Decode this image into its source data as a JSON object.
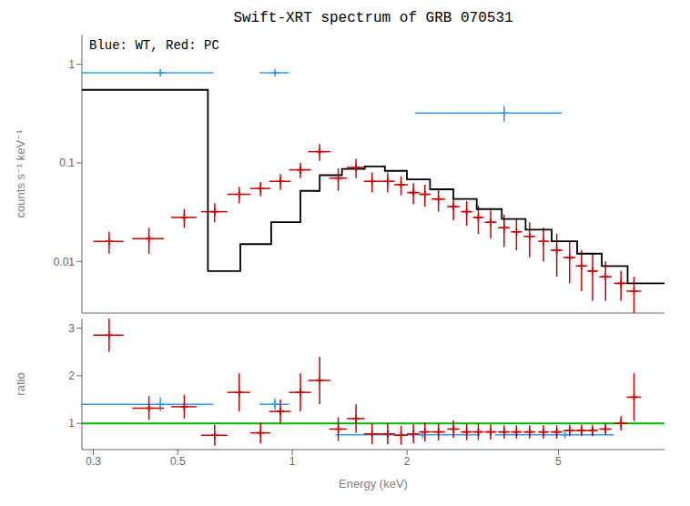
{
  "chart_data": [
    {
      "type": "scatter",
      "title": "Swift-XRT spectrum of GRB 070531",
      "subtitle": "Blue: WT, Red: PC",
      "y_label": "counts s⁻¹ keV⁻¹",
      "log": true,
      "grid": false,
      "tick_labels": "y",
      "xlim": [
        0.28,
        9.5
      ],
      "ylim": [
        0.003,
        2.0
      ],
      "yticks": [
        0.01,
        0.1,
        1
      ],
      "series": [
        {
          "type": "line",
          "color": "#000000",
          "x": [
            0.28,
            0.6,
            0.6,
            0.73,
            0.73,
            0.88,
            0.88,
            1.05,
            1.05,
            1.18,
            1.18,
            1.35,
            1.35,
            1.55,
            1.55,
            1.75,
            1.75,
            2.0,
            2.0,
            2.3,
            2.3,
            2.65,
            2.65,
            3.05,
            3.05,
            3.55,
            3.55,
            4.1,
            4.1,
            4.8,
            4.8,
            5.6,
            5.6,
            6.5,
            6.5,
            7.6,
            7.6,
            9.5
          ],
          "values": [
            0.55,
            0.55,
            0.008,
            0.008,
            0.015,
            0.015,
            0.025,
            0.025,
            0.052,
            0.052,
            0.075,
            0.075,
            0.087,
            0.087,
            0.092,
            0.092,
            0.083,
            0.083,
            0.068,
            0.068,
            0.054,
            0.054,
            0.043,
            0.043,
            0.034,
            0.034,
            0.027,
            0.027,
            0.021,
            0.021,
            0.016,
            0.016,
            0.012,
            0.012,
            0.009,
            0.009,
            0.006,
            0.006
          ]
        },
        {
          "type": "scatter",
          "marker": "+",
          "color": "#cc0000",
          "x": [
            0.33,
            0.42,
            0.52,
            0.625,
            0.725,
            0.825,
            0.93,
            1.05,
            1.18,
            1.32,
            1.47,
            1.62,
            1.78,
            1.93,
            2.08,
            2.23,
            2.42,
            2.65,
            2.87,
            3.08,
            3.32,
            3.6,
            3.88,
            4.2,
            4.57,
            4.95,
            5.35,
            5.75,
            6.15,
            6.65,
            7.3,
            7.9
          ],
          "values": [
            0.016,
            0.017,
            0.028,
            0.032,
            0.048,
            0.055,
            0.065,
            0.085,
            0.13,
            0.07,
            0.09,
            0.065,
            0.065,
            0.06,
            0.05,
            0.048,
            0.043,
            0.036,
            0.032,
            0.028,
            0.025,
            0.022,
            0.02,
            0.018,
            0.016,
            0.013,
            0.011,
            0.009,
            0.008,
            0.007,
            0.006,
            0.005
          ],
          "x_error": [
            0.03,
            0.04,
            0.04,
            0.05,
            0.05,
            0.05,
            0.06,
            0.07,
            0.08,
            0.07,
            0.08,
            0.08,
            0.08,
            0.08,
            0.08,
            0.08,
            0.1,
            0.1,
            0.1,
            0.1,
            0.12,
            0.13,
            0.13,
            0.15,
            0.15,
            0.18,
            0.2,
            0.2,
            0.2,
            0.25,
            0.3,
            0.35
          ],
          "y_error": [
            0.004,
            0.005,
            0.006,
            0.007,
            0.009,
            0.009,
            0.012,
            0.015,
            0.025,
            0.018,
            0.02,
            0.015,
            0.015,
            0.013,
            0.012,
            0.012,
            0.011,
            0.01,
            0.009,
            0.009,
            0.008,
            0.008,
            0.007,
            0.007,
            0.006,
            0.006,
            0.005,
            0.004,
            0.004,
            0.003,
            0.002,
            0.002
          ]
        },
        {
          "type": "scatter",
          "marker": "+",
          "color": "#3399ff",
          "x": [
            0.45,
            0.9
          ],
          "values": [
            0.82,
            0.82
          ],
          "x_error": [
            0.17,
            0.08
          ],
          "y_error": [
            0.03,
            0.03
          ]
        },
        {
          "type": "scatter",
          "marker": "+",
          "color": "#3399ff",
          "x": [
            3.6
          ],
          "values": [
            0.32
          ],
          "x_error": [
            1.5
          ],
          "y_error": [
            0.06
          ]
        }
      ]
    },
    {
      "type": "scatter",
      "x_label": "Energy (keV)",
      "y_label": "ratio",
      "log": "x",
      "grid": false,
      "xlim": [
        0.28,
        9.5
      ],
      "ylim": [
        0.45,
        3.2
      ],
      "xticks": [
        0.3,
        0.5,
        1,
        2,
        5
      ],
      "yticks": [
        1,
        2,
        3
      ],
      "reference_lines": [
        {
          "value": 1.0,
          "color": "#00bb00"
        }
      ],
      "series": [
        {
          "type": "scatter",
          "marker": "+",
          "color": "#3399ff",
          "x": [
            0.45,
            0.9
          ],
          "values": [
            1.4,
            1.4
          ],
          "x_error": [
            0.17,
            0.08
          ],
          "y_error": [
            0.15,
            0.12
          ]
        },
        {
          "type": "scatter",
          "marker": "+",
          "color": "#3399ff",
          "x": [
            2.2,
            5.2
          ],
          "values": [
            0.76,
            0.76
          ],
          "x_error": [
            0.9,
            1.8
          ],
          "y_error": [
            0.04,
            0.04
          ]
        },
        {
          "type": "scatter",
          "marker": "+",
          "color": "#cc0000",
          "x": [
            0.33,
            0.42,
            0.52,
            0.625,
            0.725,
            0.825,
            0.93,
            1.05,
            1.18,
            1.32,
            1.47,
            1.62,
            1.78,
            1.93,
            2.08,
            2.23,
            2.42,
            2.65,
            2.87,
            3.08,
            3.32,
            3.6,
            3.88,
            4.2,
            4.57,
            4.95,
            5.35,
            5.75,
            6.15,
            6.65,
            7.3,
            7.9
          ],
          "values": [
            2.85,
            1.32,
            1.35,
            0.75,
            1.65,
            0.8,
            1.25,
            1.65,
            1.9,
            0.88,
            1.1,
            0.78,
            0.78,
            0.75,
            0.78,
            0.82,
            0.82,
            0.88,
            0.82,
            0.82,
            0.82,
            0.82,
            0.82,
            0.82,
            0.82,
            0.82,
            0.85,
            0.85,
            0.85,
            0.88,
            1.0,
            1.55
          ],
          "x_error": [
            0.03,
            0.04,
            0.04,
            0.05,
            0.05,
            0.05,
            0.06,
            0.07,
            0.08,
            0.07,
            0.08,
            0.08,
            0.08,
            0.08,
            0.08,
            0.08,
            0.1,
            0.1,
            0.1,
            0.1,
            0.12,
            0.13,
            0.13,
            0.15,
            0.15,
            0.18,
            0.2,
            0.2,
            0.2,
            0.25,
            0.3,
            0.35
          ],
          "y_error": [
            0.35,
            0.25,
            0.25,
            0.22,
            0.4,
            0.22,
            0.25,
            0.4,
            0.5,
            0.25,
            0.3,
            0.22,
            0.22,
            0.2,
            0.2,
            0.2,
            0.18,
            0.18,
            0.17,
            0.17,
            0.16,
            0.14,
            0.14,
            0.14,
            0.14,
            0.14,
            0.12,
            0.12,
            0.12,
            0.12,
            0.15,
            0.5
          ]
        }
      ]
    }
  ]
}
